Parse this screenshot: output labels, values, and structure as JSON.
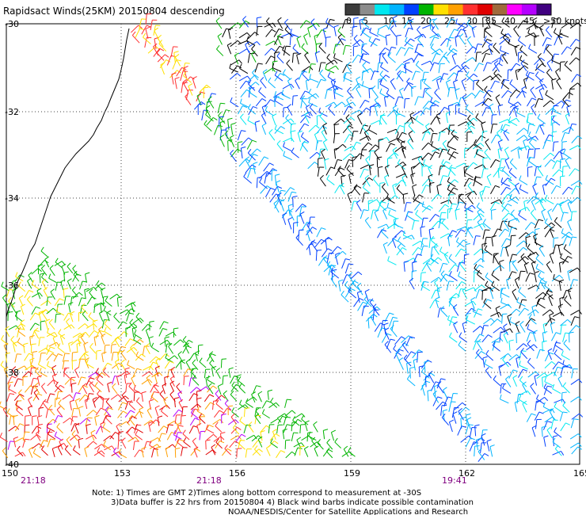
{
  "title": "Rapidsact Winds(25KM) 20150804 descending",
  "legend": {
    "labels": [
      "0",
      "5",
      "10",
      "15",
      "20",
      "25",
      "30",
      "35",
      "40",
      "45",
      ">50 knots"
    ],
    "colors": [
      "#3c3c3c",
      "#8c8c8c",
      "#00e8f0",
      "#00b4ff",
      "#0040ff",
      "#00b400",
      "#ffe000",
      "#ffa000",
      "#ff3030",
      "#e00000",
      "#a06a3c",
      "#ff00ff",
      "#b400ff",
      "#400080"
    ]
  },
  "axes": {
    "lat_labels": [
      "-30",
      "-32",
      "-34",
      "-36",
      "-38",
      "-40"
    ],
    "lon_labels": [
      "150",
      "153",
      "156",
      "159",
      "162",
      "165"
    ]
  },
  "times": [
    "21:18",
    "21:18",
    "19:41"
  ],
  "notes": {
    "line1": "Note: 1) Times are GMT 2)Times along bottom correspond to measurement at -30S",
    "line2": "3)Data buffer is 22 hrs from 20150804 4) Black wind barbs indicate possible contamination",
    "line3": "NOAA/NESDIS/Center for Satellite Applications and Research"
  },
  "swaths": [
    {
      "name": "upper-right",
      "colors": [
        "#000000",
        "#0040ff",
        "#00b4ff",
        "#00e8f0",
        "#00b400"
      ]
    },
    {
      "name": "narrow-strip",
      "colors": [
        "#ffe000",
        "#ff3030",
        "#00b400",
        "#0040ff",
        "#00b4ff"
      ]
    },
    {
      "name": "lower-left",
      "colors": [
        "#ffe000",
        "#ffa000",
        "#ff3030",
        "#00b400",
        "#e00000",
        "#b400ff"
      ]
    }
  ]
}
